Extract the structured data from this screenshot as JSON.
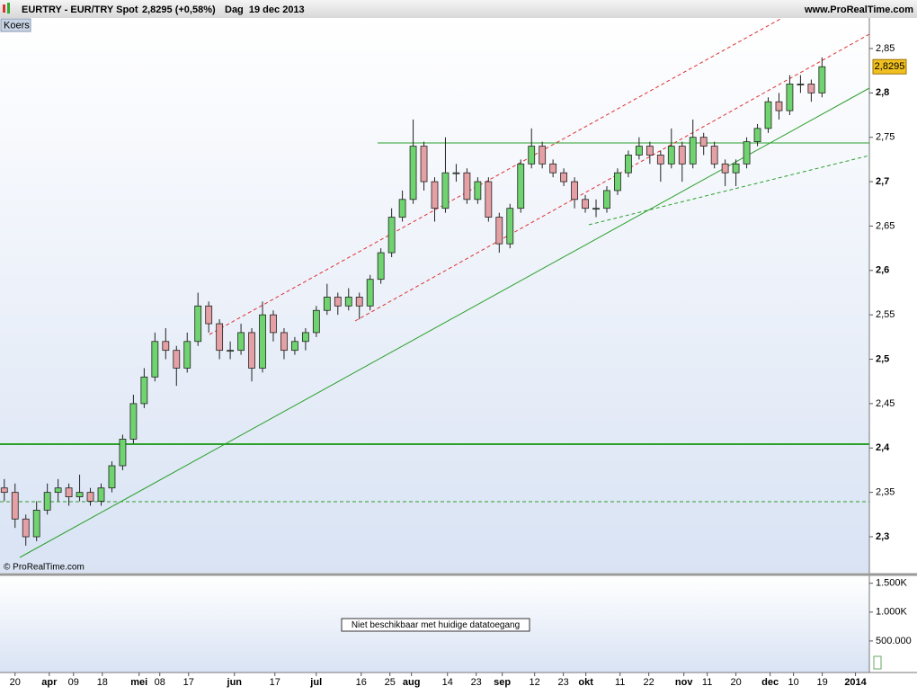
{
  "header": {
    "symbol": "EURTRY - EUR/TRY Spot",
    "quote": "2,8295 (+0,58%)",
    "period": "Dag  19 dec 2013",
    "site": "www.ProRealTime.com"
  },
  "chart_data": {
    "type": "candlestick",
    "panel_label": "Koers",
    "copyright": "© ProRealTime.com",
    "up_color": "#6fd36f",
    "down_color": "#e4a0a4",
    "candles": [
      [
        2.355,
        2.365,
        2.34,
        2.35
      ],
      [
        2.35,
        2.36,
        2.31,
        2.32
      ],
      [
        2.32,
        2.325,
        2.29,
        2.3
      ],
      [
        2.3,
        2.34,
        2.295,
        2.33
      ],
      [
        2.33,
        2.36,
        2.325,
        2.35
      ],
      [
        2.35,
        2.365,
        2.34,
        2.355
      ],
      [
        2.355,
        2.36,
        2.335,
        2.345
      ],
      [
        2.345,
        2.37,
        2.34,
        2.35
      ],
      [
        2.35,
        2.355,
        2.335,
        2.34
      ],
      [
        2.34,
        2.36,
        2.335,
        2.355
      ],
      [
        2.355,
        2.385,
        2.35,
        2.38
      ],
      [
        2.38,
        2.415,
        2.375,
        2.41
      ],
      [
        2.41,
        2.46,
        2.405,
        2.45
      ],
      [
        2.45,
        2.49,
        2.445,
        2.48
      ],
      [
        2.48,
        2.53,
        2.475,
        2.52
      ],
      [
        2.52,
        2.535,
        2.5,
        2.51
      ],
      [
        2.51,
        2.515,
        2.47,
        2.49
      ],
      [
        2.49,
        2.53,
        2.485,
        2.52
      ],
      [
        2.52,
        2.575,
        2.515,
        2.56
      ],
      [
        2.56,
        2.565,
        2.53,
        2.54
      ],
      [
        2.54,
        2.545,
        2.5,
        2.51
      ],
      [
        2.51,
        2.52,
        2.5,
        2.51
      ],
      [
        2.51,
        2.54,
        2.505,
        2.53
      ],
      [
        2.53,
        2.535,
        2.475,
        2.49
      ],
      [
        2.49,
        2.565,
        2.485,
        2.55
      ],
      [
        2.55,
        2.555,
        2.52,
        2.53
      ],
      [
        2.53,
        2.535,
        2.5,
        2.51
      ],
      [
        2.51,
        2.525,
        2.505,
        2.52
      ],
      [
        2.52,
        2.535,
        2.51,
        2.53
      ],
      [
        2.53,
        2.56,
        2.525,
        2.555
      ],
      [
        2.555,
        2.585,
        2.55,
        2.57
      ],
      [
        2.57,
        2.575,
        2.55,
        2.56
      ],
      [
        2.56,
        2.58,
        2.555,
        2.57
      ],
      [
        2.57,
        2.575,
        2.545,
        2.56
      ],
      [
        2.56,
        2.595,
        2.555,
        2.59
      ],
      [
        2.59,
        2.625,
        2.585,
        2.62
      ],
      [
        2.62,
        2.67,
        2.615,
        2.66
      ],
      [
        2.66,
        2.69,
        2.655,
        2.68
      ],
      [
        2.68,
        2.77,
        2.675,
        2.74
      ],
      [
        2.74,
        2.745,
        2.69,
        2.7
      ],
      [
        2.7,
        2.705,
        2.655,
        2.67
      ],
      [
        2.67,
        2.75,
        2.665,
        2.71
      ],
      [
        2.71,
        2.72,
        2.7,
        2.71
      ],
      [
        2.71,
        2.715,
        2.675,
        2.68
      ],
      [
        2.68,
        2.705,
        2.675,
        2.7
      ],
      [
        2.7,
        2.705,
        2.655,
        2.66
      ],
      [
        2.66,
        2.665,
        2.62,
        2.63
      ],
      [
        2.63,
        2.675,
        2.625,
        2.67
      ],
      [
        2.67,
        2.725,
        2.665,
        2.72
      ],
      [
        2.72,
        2.76,
        2.715,
        2.74
      ],
      [
        2.74,
        2.745,
        2.715,
        2.72
      ],
      [
        2.72,
        2.725,
        2.705,
        2.71
      ],
      [
        2.71,
        2.715,
        2.695,
        2.7
      ],
      [
        2.7,
        2.705,
        2.67,
        2.68
      ],
      [
        2.68,
        2.685,
        2.665,
        2.67
      ],
      [
        2.67,
        2.68,
        2.66,
        2.67
      ],
      [
        2.67,
        2.695,
        2.665,
        2.69
      ],
      [
        2.69,
        2.715,
        2.685,
        2.71
      ],
      [
        2.71,
        2.735,
        2.705,
        2.73
      ],
      [
        2.73,
        2.75,
        2.725,
        2.74
      ],
      [
        2.74,
        2.745,
        2.72,
        2.73
      ],
      [
        2.73,
        2.735,
        2.7,
        2.72
      ],
      [
        2.72,
        2.76,
        2.715,
        2.74
      ],
      [
        2.74,
        2.745,
        2.7,
        2.72
      ],
      [
        2.72,
        2.77,
        2.715,
        2.75
      ],
      [
        2.75,
        2.755,
        2.73,
        2.74
      ],
      [
        2.74,
        2.745,
        2.715,
        2.72
      ],
      [
        2.72,
        2.725,
        2.695,
        2.71
      ],
      [
        2.71,
        2.725,
        2.695,
        2.72
      ],
      [
        2.72,
        2.75,
        2.715,
        2.745
      ],
      [
        2.745,
        2.765,
        2.74,
        2.76
      ],
      [
        2.76,
        2.795,
        2.755,
        2.79
      ],
      [
        2.79,
        2.8,
        2.77,
        2.78
      ],
      [
        2.78,
        2.82,
        2.775,
        2.81
      ],
      [
        2.81,
        2.82,
        2.8,
        2.81
      ],
      [
        2.81,
        2.815,
        2.79,
        2.8
      ],
      [
        2.8,
        2.84,
        2.795,
        2.8295
      ]
    ],
    "last_price_label": "2,8295",
    "xlim": [
      -0.4,
      80.4
    ],
    "xticks": [
      {
        "value": 1.0,
        "label": "20"
      },
      {
        "value": 4.18,
        "label": "apr"
      },
      {
        "value": 6.43,
        "label": "09"
      },
      {
        "value": 9.11,
        "label": "18"
      },
      {
        "value": 12.53,
        "label": "mei"
      },
      {
        "value": 14.45,
        "label": "08"
      },
      {
        "value": 17.13,
        "label": "17"
      },
      {
        "value": 21.39,
        "label": "jun"
      },
      {
        "value": 25.15,
        "label": "17"
      },
      {
        "value": 28.99,
        "label": "jul"
      },
      {
        "value": 33.17,
        "label": "16"
      },
      {
        "value": 35.84,
        "label": "25"
      },
      {
        "value": 37.84,
        "label": "aug"
      },
      {
        "value": 41.19,
        "label": "14"
      },
      {
        "value": 43.86,
        "label": "23"
      },
      {
        "value": 46.28,
        "label": "sep"
      },
      {
        "value": 49.29,
        "label": "12"
      },
      {
        "value": 51.96,
        "label": "23"
      },
      {
        "value": 54.05,
        "label": "okt"
      },
      {
        "value": 57.23,
        "label": "11"
      },
      {
        "value": 59.9,
        "label": "22"
      },
      {
        "value": 63.16,
        "label": "nov"
      },
      {
        "value": 65.33,
        "label": "11"
      },
      {
        "value": 68.0,
        "label": "20"
      },
      {
        "value": 71.18,
        "label": "dec"
      },
      {
        "value": 73.35,
        "label": "10"
      },
      {
        "value": 76.02,
        "label": "19"
      },
      {
        "value": 79.11,
        "label": "2014"
      }
    ],
    "ylim": [
      2.2595,
      2.8844
    ],
    "yticks": [
      {
        "value": 2.3,
        "label": "2,3"
      },
      {
        "value": 2.35,
        "label": "2,35"
      },
      {
        "value": 2.4,
        "label": "2,4"
      },
      {
        "value": 2.45,
        "label": "2,45"
      },
      {
        "value": 2.5,
        "label": "2,5"
      },
      {
        "value": 2.55,
        "label": "2,55"
      },
      {
        "value": 2.6,
        "label": "2,6"
      },
      {
        "value": 2.65,
        "label": "2,65"
      },
      {
        "value": 2.7,
        "label": "2,7"
      },
      {
        "value": 2.75,
        "label": "2,75"
      },
      {
        "value": 2.8,
        "label": "2,8"
      },
      {
        "value": 2.85,
        "label": "2,85"
      }
    ],
    "volume_panel": {
      "message": "Niet beschikbaar met huidige datatoegang",
      "ylim": [
        0,
        1620000
      ],
      "yticks": [
        {
          "value": 1500000,
          "label": "1.500K"
        },
        {
          "value": 1000000,
          "label": "1.000K"
        },
        {
          "value": 500000,
          "label": "500.000"
        }
      ]
    }
  }
}
